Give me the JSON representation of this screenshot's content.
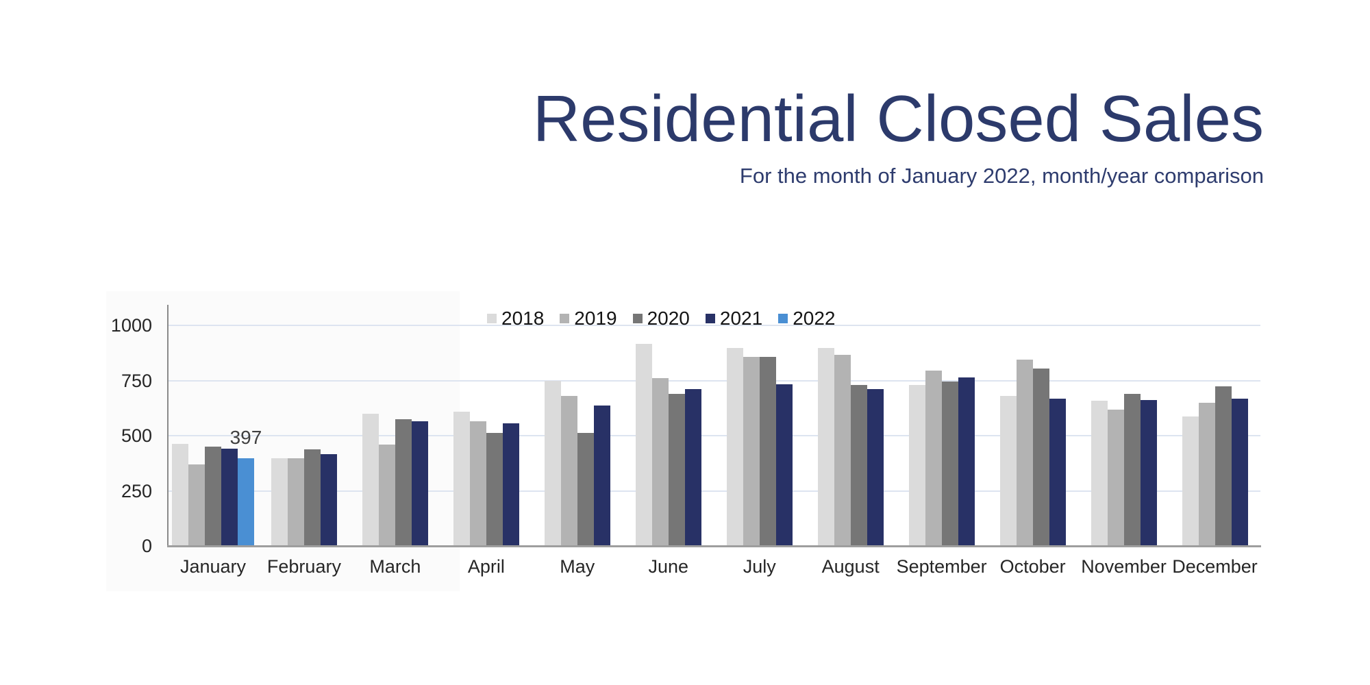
{
  "page": {
    "title": "Residential Closed Sales",
    "subtitle": "For the month of January 2022, month/year comparison"
  },
  "colors": {
    "title_text": "#2c3a6b",
    "gridline": "#dde4f0",
    "axis_line": "#9e9e9e",
    "tick_text": "#262626",
    "annotation_text": "#404040",
    "series_2018": "#dbdbdb",
    "series_2019": "#b3b3b3",
    "series_2020": "#767676",
    "series_2021": "#283166",
    "series_2022": "#4a8fd3"
  },
  "chart_data": {
    "type": "bar",
    "title": "Residential Closed Sales",
    "subtitle": "For the month of January 2022, month/year comparison",
    "categories": [
      "January",
      "February",
      "March",
      "April",
      "May",
      "June",
      "July",
      "August",
      "September",
      "October",
      "November",
      "December"
    ],
    "series": [
      {
        "name": "2018",
        "color": "#dbdbdb",
        "values": [
          462,
          398,
          600,
          608,
          750,
          915,
          897,
          897,
          731,
          681,
          658,
          586
        ]
      },
      {
        "name": "2019",
        "color": "#b3b3b3",
        "values": [
          370,
          398,
          460,
          565,
          680,
          760,
          856,
          865,
          795,
          845,
          617,
          650
        ]
      },
      {
        "name": "2020",
        "color": "#767676",
        "values": [
          450,
          438,
          575,
          512,
          512,
          688,
          856,
          731,
          744,
          805,
          689,
          723
        ]
      },
      {
        "name": "2021",
        "color": "#283166",
        "values": [
          441,
          416,
          565,
          556,
          636,
          710,
          732,
          712,
          764,
          669,
          661,
          669
        ]
      },
      {
        "name": "2022",
        "color": "#4a8fd3",
        "values": [
          397,
          null,
          null,
          null,
          null,
          null,
          null,
          null,
          null,
          null,
          null,
          null
        ]
      }
    ],
    "annotations": [
      {
        "text": "397",
        "series": "2022",
        "category": "January",
        "value": 397
      }
    ],
    "y_axis": {
      "ticks": [
        0,
        250,
        500,
        750,
        1000
      ],
      "min": 0,
      "max": 1000
    },
    "x_axis_label": "",
    "y_axis_label": "",
    "grid": true,
    "legend_position": "top-center"
  }
}
